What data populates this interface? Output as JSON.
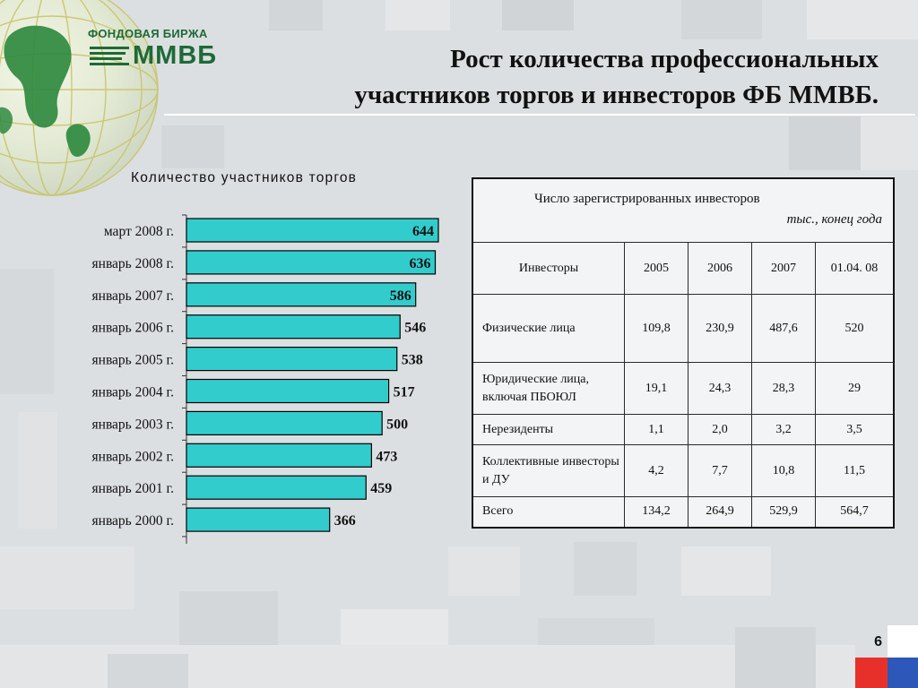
{
  "logo": {
    "top_text": "ФОНДОВАЯ БИРЖА",
    "main_text": "ММВБ"
  },
  "title": {
    "line1": "Рост количества профессиональных",
    "line2": "участников торгов и инвесторов ФБ ММВБ."
  },
  "colors": {
    "bar_fill": "#33cccc",
    "bar_border": "#000000",
    "brand_green": "#1d6a37",
    "flag_white": "#ffffff",
    "flag_blue": "#2d57b8",
    "flag_red": "#e8302a"
  },
  "chart_data": [
    {
      "type": "bar",
      "orientation": "horizontal",
      "title": "Количество участников торгов",
      "categories": [
        "март 2008 г.",
        "январь 2008 г.",
        "январь 2007 г.",
        "январь 2006 г.",
        "январь 2005 г.",
        "январь 2004 г.",
        "январь 2003 г.",
        "январь 2002 г.",
        "январь 2001 г.",
        "январь 2000 г."
      ],
      "values": [
        644,
        636,
        586,
        546,
        538,
        517,
        500,
        473,
        459,
        366
      ],
      "xlim": [
        0,
        644
      ],
      "grid": false,
      "data_labels": true
    },
    {
      "type": "table",
      "title": "Число зарегистрированных инвесторов",
      "unit_note": "тыс., конец года",
      "columns": [
        "Инвесторы",
        "2005",
        "2006",
        "2007",
        "01.04. 08"
      ],
      "rows": [
        [
          "Физические лица",
          "109,8",
          "230,9",
          "487,6",
          "520"
        ],
        [
          "Юридические лица, включая ПБОЮЛ",
          "19,1",
          "24,3",
          "28,3",
          "29"
        ],
        [
          "Нерезиденты",
          "1,1",
          "2,0",
          "3,2",
          "3,5"
        ],
        [
          "Коллективные инвесторы и ДУ",
          "4,2",
          "7,7",
          "10,8",
          "11,5"
        ],
        [
          "Всего",
          "134,2",
          "264,9",
          "529,9",
          "564,7"
        ]
      ]
    }
  ],
  "page_number": "6"
}
